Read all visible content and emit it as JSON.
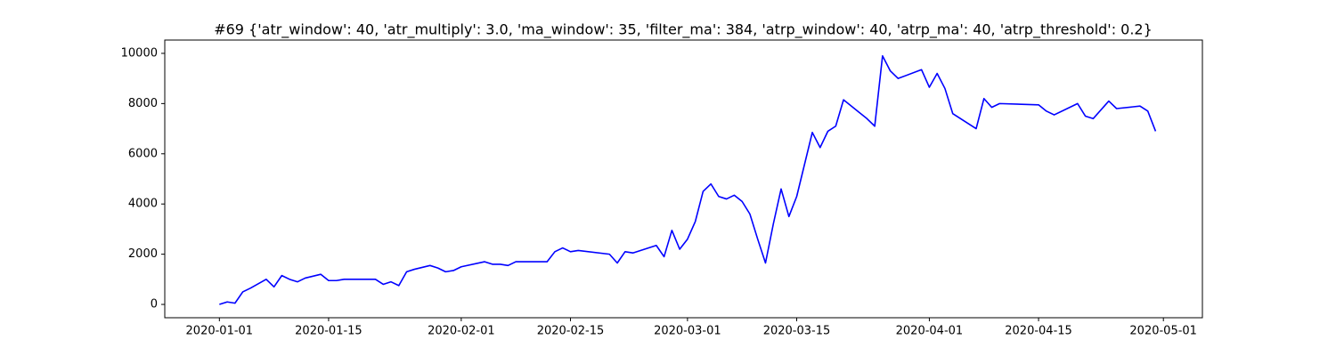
{
  "chart_data": {
    "type": "line",
    "title": "#69 {'atr_window': 40, 'atr_multiply': 3.0, 'ma_window': 35, 'filter_ma': 384, 'atrp_window': 40, 'atrp_ma': 40, 'atrp_threshold': 0.2}",
    "x": [
      "2020-01-01",
      "2020-01-02",
      "2020-01-03",
      "2020-01-04",
      "2020-01-05",
      "2020-01-07",
      "2020-01-08",
      "2020-01-09",
      "2020-01-10",
      "2020-01-11",
      "2020-01-12",
      "2020-01-14",
      "2020-01-15",
      "2020-01-16",
      "2020-01-17",
      "2020-01-21",
      "2020-01-22",
      "2020-01-23",
      "2020-01-24",
      "2020-01-25",
      "2020-01-26",
      "2020-01-28",
      "2020-01-29",
      "2020-01-30",
      "2020-01-31",
      "2020-02-01",
      "2020-02-04",
      "2020-02-05",
      "2020-02-06",
      "2020-02-07",
      "2020-02-08",
      "2020-02-12",
      "2020-02-13",
      "2020-02-14",
      "2020-02-15",
      "2020-02-16",
      "2020-02-20",
      "2020-02-21",
      "2020-02-22",
      "2020-02-23",
      "2020-02-26",
      "2020-02-27",
      "2020-02-28",
      "2020-02-29",
      "2020-03-01",
      "2020-03-02",
      "2020-03-03",
      "2020-03-04",
      "2020-03-05",
      "2020-03-06",
      "2020-03-07",
      "2020-03-08",
      "2020-03-09",
      "2020-03-10",
      "2020-03-11",
      "2020-03-12",
      "2020-03-13",
      "2020-03-14",
      "2020-03-15",
      "2020-03-17",
      "2020-03-18",
      "2020-03-19",
      "2020-03-20",
      "2020-03-21",
      "2020-03-23",
      "2020-03-24",
      "2020-03-25",
      "2020-03-26",
      "2020-03-27",
      "2020-03-28",
      "2020-03-31",
      "2020-04-01",
      "2020-04-02",
      "2020-04-03",
      "2020-04-04",
      "2020-04-07",
      "2020-04-08",
      "2020-04-09",
      "2020-04-10",
      "2020-04-15",
      "2020-04-16",
      "2020-04-17",
      "2020-04-20",
      "2020-04-21",
      "2020-04-22",
      "2020-04-24",
      "2020-04-25",
      "2020-04-28",
      "2020-04-29",
      "2020-04-30"
    ],
    "series": [
      {
        "color": "#0000ff",
        "values": [
          0,
          100,
          50,
          500,
          650,
          1000,
          700,
          1150,
          1000,
          900,
          1050,
          1200,
          950,
          950,
          1000,
          1000,
          800,
          900,
          750,
          1300,
          1400,
          1550,
          1450,
          1300,
          1350,
          1500,
          1700,
          1600,
          1600,
          1550,
          1700,
          1700,
          2100,
          2250,
          2100,
          2150,
          2000,
          1650,
          2100,
          2050,
          2350,
          1900,
          2950,
          2200,
          2600,
          3300,
          4500,
          4800,
          4300,
          4200,
          4350,
          4100,
          3600,
          2600,
          1650,
          3200,
          4600,
          3500,
          4300,
          6850,
          6250,
          6900,
          7100,
          8150,
          7650,
          7400,
          7100,
          9900,
          9300,
          9000,
          9350,
          8650,
          9200,
          8600,
          7600,
          7000,
          8200,
          7850,
          8000,
          7950,
          7700,
          7550,
          8000,
          7500,
          7400,
          8100,
          7800,
          7900,
          7700,
          6900
        ]
      }
    ],
    "xlim": [
      "2019-12-25",
      "2020-05-06"
    ],
    "xticks": [
      "2020-01-01",
      "2020-01-15",
      "2020-02-01",
      "2020-02-15",
      "2020-03-01",
      "2020-03-15",
      "2020-04-01",
      "2020-04-15",
      "2020-05-01"
    ],
    "ylim": [
      -530,
      10530
    ],
    "yticks": [
      0,
      2000,
      4000,
      6000,
      8000,
      10000
    ]
  }
}
